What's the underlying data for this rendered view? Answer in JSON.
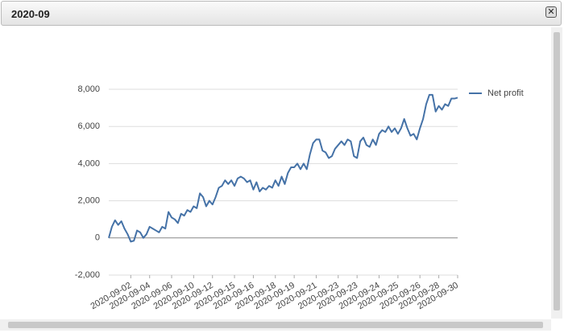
{
  "window": {
    "title": "2020-09"
  },
  "chart_data": {
    "type": "line",
    "categories": [
      null,
      null,
      null,
      null,
      null,
      null,
      null,
      "2020-09-02",
      null,
      null,
      null,
      null,
      null,
      "2020-09-04",
      null,
      null,
      null,
      null,
      null,
      null,
      "2020-09-06",
      null,
      null,
      null,
      null,
      null,
      null,
      "2020-09-10",
      null,
      null,
      null,
      null,
      null,
      "2020-09-12",
      null,
      null,
      null,
      null,
      null,
      null,
      "2020-09-15",
      null,
      null,
      null,
      null,
      null,
      "2020-09-16",
      null,
      null,
      null,
      null,
      null,
      null,
      "2020-09-18",
      null,
      null,
      null,
      null,
      null,
      "2020-09-19",
      null,
      null,
      null,
      null,
      null,
      null,
      "2020-09-21",
      null,
      null,
      null,
      null,
      null,
      null,
      "2020-09-23",
      null,
      null,
      null,
      null,
      null,
      "2020-09-23",
      null,
      null,
      null,
      null,
      null,
      null,
      "2020-09-24",
      null,
      null,
      null,
      null,
      null,
      "2020-09-25",
      null,
      null,
      null,
      null,
      null,
      null,
      "2020-09-26",
      null,
      null,
      null,
      null,
      null,
      "2020-09-28",
      null,
      null,
      null,
      null,
      null,
      "2020-09-30"
    ],
    "series": [
      {
        "name": "Net profit",
        "color": "#4572a7",
        "values": [
          0,
          600,
          950,
          700,
          900,
          500,
          200,
          -200,
          -150,
          400,
          300,
          0,
          200,
          600,
          500,
          400,
          300,
          600,
          500,
          1400,
          1100,
          1000,
          800,
          1300,
          1200,
          1500,
          1400,
          1700,
          1600,
          2400,
          2200,
          1700,
          2000,
          1800,
          2200,
          2700,
          2800,
          3100,
          2900,
          3100,
          2800,
          3200,
          3300,
          3200,
          3000,
          3100,
          2600,
          3000,
          2500,
          2700,
          2600,
          2800,
          2700,
          3100,
          2800,
          3300,
          2900,
          3500,
          3800,
          3800,
          4000,
          3700,
          4000,
          3700,
          4500,
          5100,
          5300,
          5300,
          4700,
          4600,
          4300,
          4400,
          4800,
          5000,
          5200,
          5000,
          5300,
          5200,
          4400,
          4300,
          5200,
          5400,
          5000,
          4900,
          5300,
          5000,
          5600,
          5800,
          5700,
          6000,
          5700,
          5900,
          5600,
          5900,
          6400,
          5900,
          5500,
          5600,
          5300,
          5900,
          6400,
          7200,
          7700,
          7700,
          6800,
          7100,
          6900,
          7200,
          7100,
          7500,
          7500,
          7550
        ]
      }
    ],
    "ylim": [
      -2000,
      8000
    ],
    "yticks": [
      {
        "value": -2000,
        "label": "-2,000"
      },
      0,
      {
        "value": 2000,
        "label": "2,000"
      },
      {
        "value": 4000,
        "label": "4,000"
      },
      {
        "value": 6000,
        "label": "6,000"
      },
      {
        "value": 8000,
        "label": "8,000"
      }
    ],
    "grid": true,
    "legend": "top-right"
  }
}
